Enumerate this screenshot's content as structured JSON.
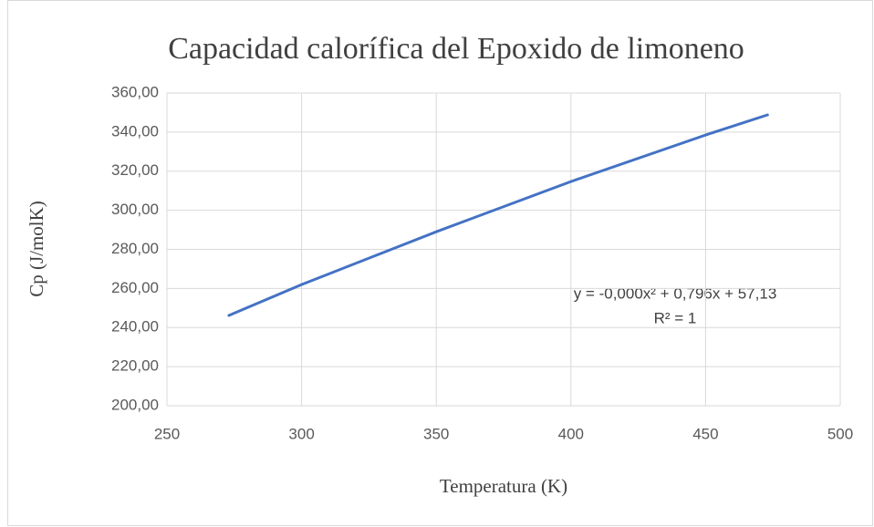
{
  "chart_data": {
    "type": "line",
    "title": "Capacidad calorífica del Epoxido de limoneno",
    "x_label": "Temperatura (K)",
    "y_label": "Cp (J/molK)",
    "annotations": [
      "y = -0,000x² + 0,796x + 57,13",
      "R² = 1"
    ],
    "series": [
      {
        "name": "Cp",
        "color": "#4472c4",
        "x": [
          273,
          300,
          350,
          400,
          450,
          473
        ],
        "values": [
          246.2,
          262.0,
          289.0,
          314.7,
          338.5,
          348.8
        ]
      }
    ],
    "xlim": [
      250,
      500
    ],
    "xticks": [
      250,
      300,
      350,
      400,
      450,
      500
    ],
    "ylim": [
      200,
      360
    ],
    "yticks": [
      {
        "value": 200,
        "label": "200,00"
      },
      {
        "value": 220,
        "label": "220,00"
      },
      {
        "value": 240,
        "label": "240,00"
      },
      {
        "value": 260,
        "label": "260,00"
      },
      {
        "value": 280,
        "label": "280,00"
      },
      {
        "value": 300,
        "label": "300,00"
      },
      {
        "value": 320,
        "label": "320,00"
      },
      {
        "value": 340,
        "label": "340,00"
      },
      {
        "value": 360,
        "label": "360,00"
      }
    ],
    "grid": true
  }
}
